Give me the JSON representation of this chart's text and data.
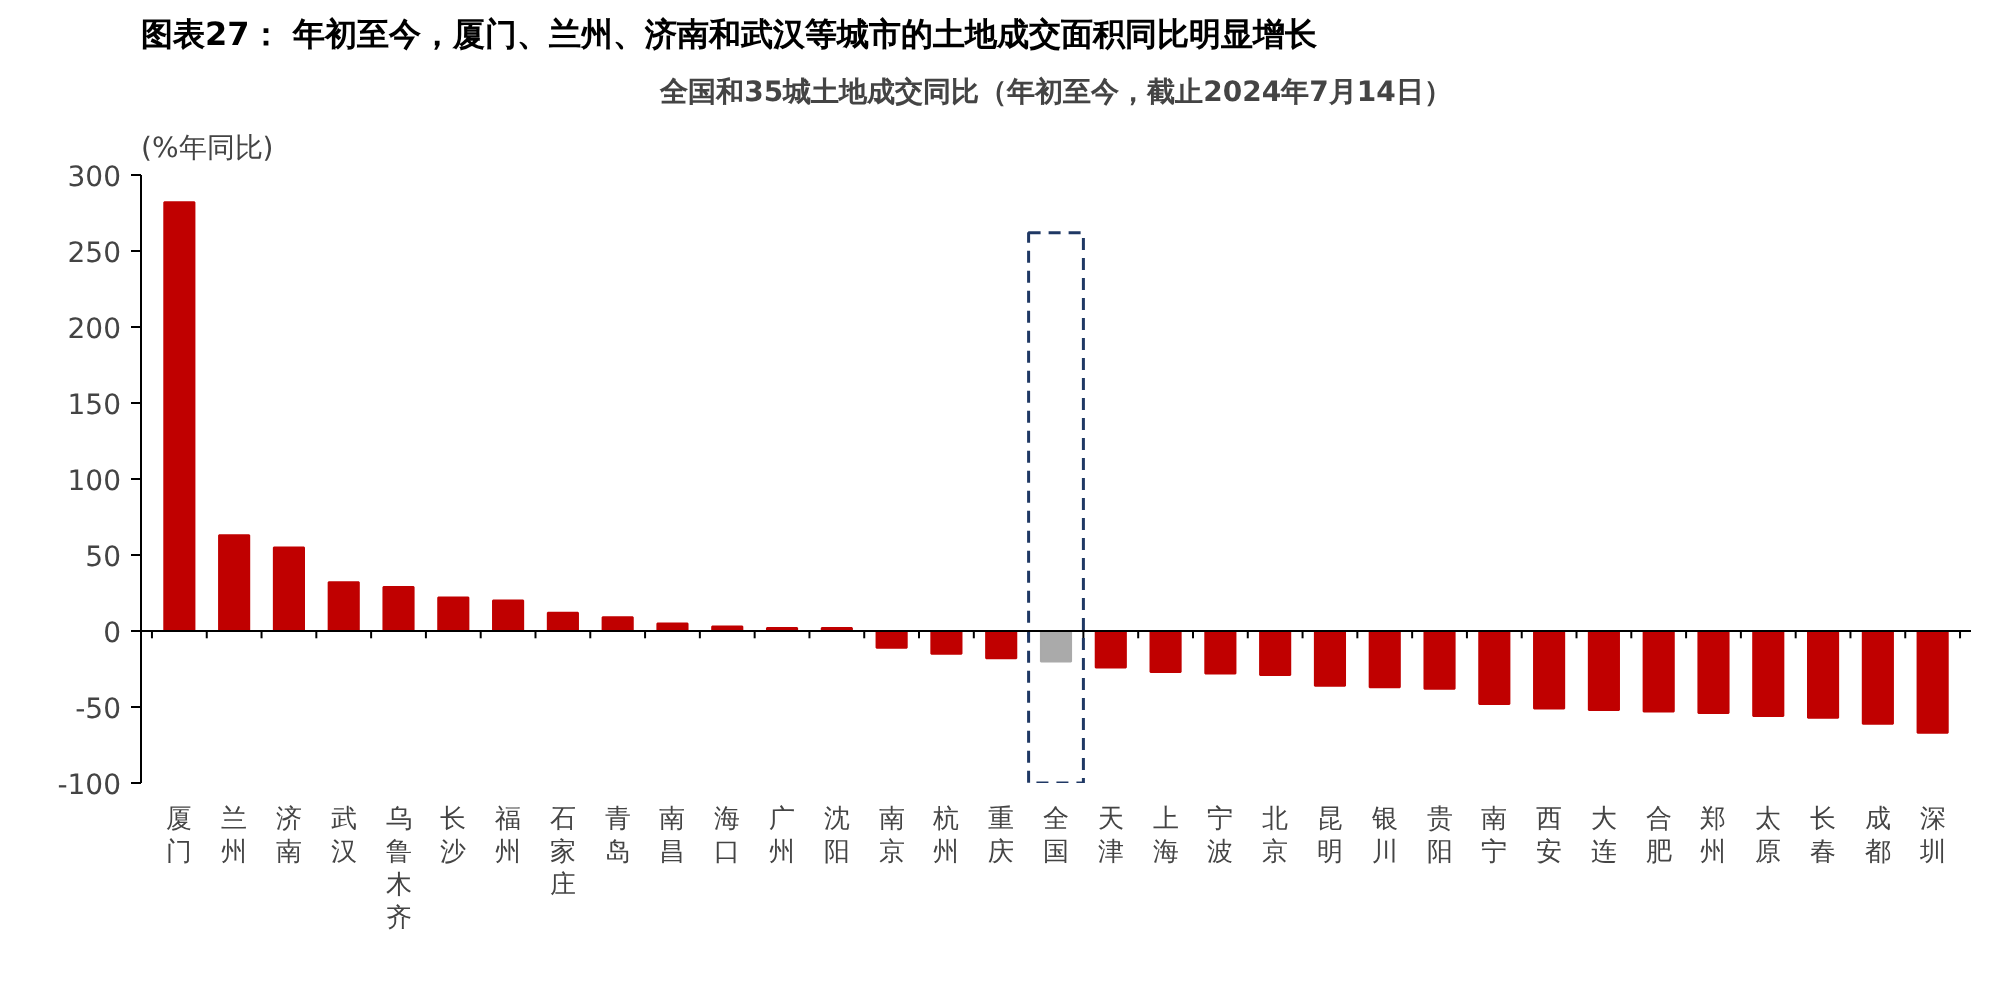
{
  "chart_data": {
    "type": "bar",
    "title": "图表27：  年初至今，厦门、兰州、济南和武汉等城市的土地成交面积同比明显增长",
    "subtitle": "全国和35城土地成交同比（年初至今，截止2024年7月14日）",
    "ylabel": "(%年同比)",
    "categories": [
      "厦门",
      "兰州",
      "济南",
      "武汉",
      "乌鲁木齐",
      "长沙",
      "福州",
      "石家庄",
      "青岛",
      "南昌",
      "海口",
      "广州",
      "沈阳",
      "南京",
      "杭州",
      "重庆",
      "全国",
      "天津",
      "上海",
      "宁波",
      "北京",
      "昆明",
      "银川",
      "贵阳",
      "南宁",
      "西安",
      "大连",
      "合肥",
      "郑州",
      "太原",
      "长春",
      "成都",
      "深圳"
    ],
    "values": [
      282,
      63,
      55,
      32,
      29,
      22,
      20,
      12,
      9,
      5,
      3,
      2,
      2,
      -11,
      -15,
      -18,
      -20,
      -24,
      -27,
      -28,
      -29,
      -36,
      -37,
      -38,
      -48,
      -51,
      -52,
      -53,
      -54,
      -56,
      -57,
      -61,
      -67
    ],
    "colors": [
      "#c00000",
      "#c00000",
      "#c00000",
      "#c00000",
      "#c00000",
      "#c00000",
      "#c00000",
      "#c00000",
      "#c00000",
      "#c00000",
      "#c00000",
      "#c00000",
      "#c00000",
      "#c00000",
      "#c00000",
      "#c00000",
      "#aaaaaa",
      "#c00000",
      "#c00000",
      "#c00000",
      "#c00000",
      "#c00000",
      "#c00000",
      "#c00000",
      "#c00000",
      "#c00000",
      "#c00000",
      "#c00000",
      "#c00000",
      "#c00000",
      "#c00000",
      "#c00000",
      "#c00000"
    ],
    "ylim": [
      -100,
      300
    ],
    "yticks": [
      -100,
      -50,
      0,
      50,
      100,
      150,
      200,
      250,
      300
    ]
  }
}
